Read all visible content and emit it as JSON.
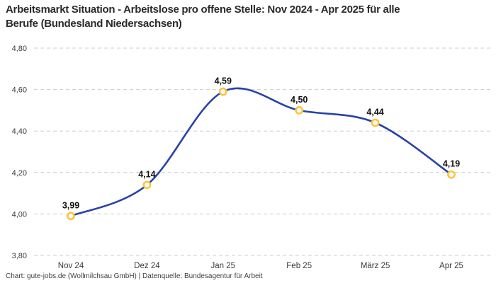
{
  "header": {
    "title_line1": "Arbeitsmarkt Situation - Arbeitslose pro offene Stelle: Nov 2024 - Apr 2025 für alle",
    "title_line2": "Berufe (Bundesland Niedersachsen)"
  },
  "footer": {
    "attribution": "Chart: gute-jobs.de (Wollmilchsau GmbH) | Datenquelle: Bundesagentur für Arbeit"
  },
  "chart_data": {
    "type": "line",
    "title": "Arbeitsmarkt Situation - Arbeitslose pro offene Stelle: Nov 2024 - Apr 2025 für alle Berufe (Bundesland Niedersachsen)",
    "categories": [
      "Nov 24",
      "Dez 24",
      "Jan 25",
      "Feb 25",
      "März 25",
      "Apr 25"
    ],
    "values": [
      3.99,
      4.14,
      4.59,
      4.5,
      4.44,
      4.19
    ],
    "value_labels": [
      "3,99",
      "4,14",
      "4,59",
      "4,50",
      "4,44",
      "4,19"
    ],
    "xlabel": "",
    "ylabel": "",
    "ylim": [
      3.8,
      4.8
    ],
    "yticks": [
      3.8,
      4.0,
      4.2,
      4.4,
      4.6,
      4.8
    ],
    "ytick_labels": [
      "3,80",
      "4,00",
      "4,20",
      "4,40",
      "4,60",
      "4,80"
    ],
    "grid": "horizontal-dashed",
    "legend": "none",
    "curve": "smooth-spline",
    "colors": {
      "line": "#2843a8",
      "marker_stroke": "#fdc33c",
      "marker_fill": "#ffffff",
      "gridline": "#cbcbcb",
      "tick_text": "#3b3b3b",
      "data_label": "#111111"
    }
  }
}
